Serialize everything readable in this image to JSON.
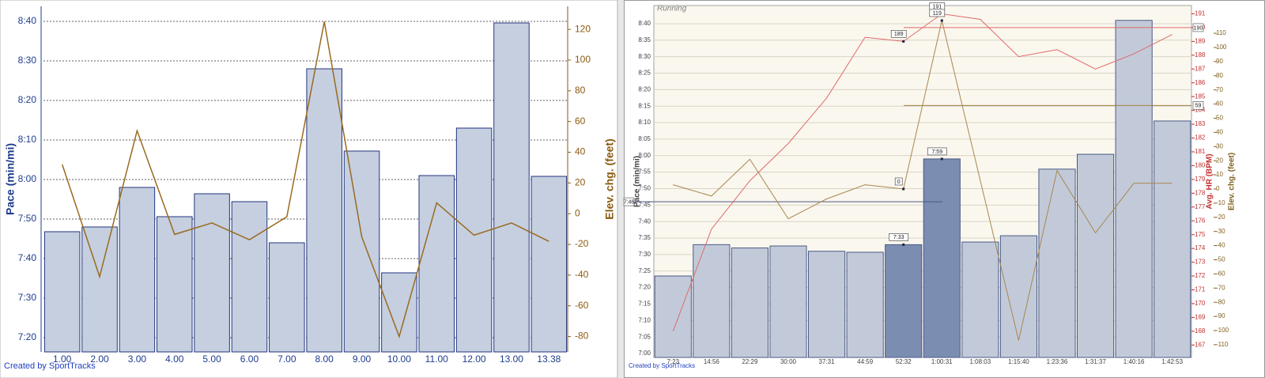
{
  "chart_data": [
    {
      "type": "bar",
      "categories": [
        "1.00",
        "2.00",
        "3.00",
        "4.00",
        "5.00",
        "6.00",
        "7.00",
        "8.00",
        "9.00",
        "10.00",
        "11.00",
        "12.00",
        "13.00",
        "13.38"
      ],
      "series": [
        {
          "type": "bar",
          "color": "#c5cfe0",
          "stroke": "#23367e",
          "values": [
            466.8,
            468,
            478,
            470.6,
            476.4,
            474.4,
            464,
            508,
            487.2,
            456.4,
            481,
            493,
            519.6,
            480.8
          ]
        },
        {
          "type": "line",
          "axis": "y2",
          "color": "#9a6a20",
          "values": [
            32,
            -41,
            54,
            -13.5,
            -6,
            -17,
            -2,
            125,
            -15,
            -80,
            7,
            -14,
            -6,
            -18
          ]
        }
      ],
      "ylabel": "Pace (min/mi)",
      "y2label": "Elev. chg. (feet)",
      "ylim": [
        436.4,
        523.8
      ],
      "yticks": [
        {
          "value": 440,
          "label": "7:20"
        },
        {
          "value": 450,
          "label": "7:30"
        },
        {
          "value": 460,
          "label": "7:40"
        },
        {
          "value": 470,
          "label": "7:50"
        },
        {
          "value": 480,
          "label": "8:00"
        },
        {
          "value": 490,
          "label": "8:10"
        },
        {
          "value": 500,
          "label": "8:20"
        },
        {
          "value": 510,
          "label": "8:30"
        },
        {
          "value": 520,
          "label": "8:40"
        }
      ],
      "y2lim": [
        -90,
        135
      ],
      "y2ticks": [
        -80,
        -60,
        -40,
        -20,
        0,
        20,
        40,
        60,
        80,
        100,
        120
      ],
      "grid": true,
      "footer": "Created by SportTracks"
    },
    {
      "type": "bar",
      "title": "Running",
      "categories": [
        "7:23",
        "14:56",
        "22:29",
        "30:00",
        "37:31",
        "44:59",
        "52:32",
        "1:00:31",
        "1:08:03",
        "1:15:40",
        "1:23:36",
        "1:31:37",
        "1:40:16",
        "1:42:53"
      ],
      "series": [
        {
          "type": "bar",
          "stroke": "#4a5a86",
          "colors": [
            "#c2cad9",
            "#c2cad9",
            "#c2cad9",
            "#c2cad9",
            "#c2cad9",
            "#c2cad9",
            "#7b8db0",
            "#7b8db0",
            "#c2cad9",
            "#c2cad9",
            "#c2cad9",
            "#c2cad9",
            "#c2cad9",
            "#c2cad9"
          ],
          "values": [
            443.5,
            453,
            452,
            452.6,
            451,
            450.7,
            453,
            479,
            453.8,
            455.7,
            475.9,
            480.4,
            521,
            490.5
          ],
          "value_labels": [
            null,
            null,
            null,
            null,
            null,
            null,
            "7:33",
            "7:59",
            null,
            null,
            null,
            null,
            null,
            null
          ]
        },
        {
          "type": "line",
          "axis": "y2",
          "color": "#e06a6a",
          "values": [
            168,
            175.4,
            178.9,
            181.6,
            184.9,
            189.3,
            189,
            191,
            190.6,
            187.9,
            188.4,
            187,
            188.1,
            189.5
          ],
          "value_labels": [
            null,
            null,
            null,
            null,
            null,
            null,
            "189",
            "191",
            null,
            null,
            null,
            null,
            null,
            null
          ]
        },
        {
          "type": "line",
          "axis": "y3",
          "color": "#a88650",
          "values": [
            3,
            -5,
            21,
            -21,
            -7,
            3,
            0,
            119,
            6,
            -107,
            13,
            -31,
            4,
            4
          ],
          "value_labels": [
            null,
            null,
            null,
            null,
            null,
            null,
            "0",
            "119",
            null,
            null,
            null,
            null,
            null,
            null
          ]
        }
      ],
      "ylabel": "Pace (min/mi)",
      "y2label": "Avg. HR (BPM)",
      "y3label": "Elev. chg. (feet)",
      "ylim": [
        418.8,
        525.5
      ],
      "yticks": [
        {
          "value": 420,
          "label": "7:00"
        },
        {
          "value": 425,
          "label": "7:05"
        },
        {
          "value": 430,
          "label": "7:10"
        },
        {
          "value": 435,
          "label": "7:15"
        },
        {
          "value": 440,
          "label": "7:20"
        },
        {
          "value": 445,
          "label": "7:25"
        },
        {
          "value": 450,
          "label": "7:30"
        },
        {
          "value": 455,
          "label": "7:35"
        },
        {
          "value": 460,
          "label": "7:40"
        },
        {
          "value": 465,
          "label": "7:45"
        },
        {
          "value": 470,
          "label": "7:50"
        },
        {
          "value": 475,
          "label": "7:55"
        },
        {
          "value": 480,
          "label": "8:00"
        },
        {
          "value": 485,
          "label": "8:05"
        },
        {
          "value": 490,
          "label": "8:10"
        },
        {
          "value": 495,
          "label": "8:15"
        },
        {
          "value": 500,
          "label": "8:20"
        },
        {
          "value": 505,
          "label": "8:25"
        },
        {
          "value": 510,
          "label": "8:30"
        },
        {
          "value": 515,
          "label": "8:35"
        },
        {
          "value": 520,
          "label": "8:40"
        }
      ],
      "y2lim": [
        166.1,
        191.6
      ],
      "y2ticks": [
        167,
        168,
        169,
        170,
        171,
        172,
        173,
        174,
        175,
        176,
        177,
        178,
        179,
        180,
        181,
        182,
        183,
        184,
        185,
        186,
        187,
        188,
        189,
        190,
        191
      ],
      "y3lim": [
        -119,
        129.6
      ],
      "y3ticks": [
        -110,
        -100,
        -90,
        -80,
        -70,
        -60,
        -50,
        -40,
        -30,
        -20,
        -10,
        0,
        10,
        20,
        30,
        40,
        50,
        60,
        70,
        80,
        90,
        100,
        110
      ],
      "reference_lines": [
        {
          "axis": "y",
          "value": 466,
          "label": "7:46",
          "color": "#4a5a86"
        },
        {
          "axis": "y2",
          "value": 190,
          "label": "190",
          "color": "#e06a6a"
        },
        {
          "axis": "y3",
          "value": 59,
          "label": "59",
          "color": "#a08040"
        }
      ],
      "grid": true,
      "footer": "Created by SportTracks"
    }
  ]
}
